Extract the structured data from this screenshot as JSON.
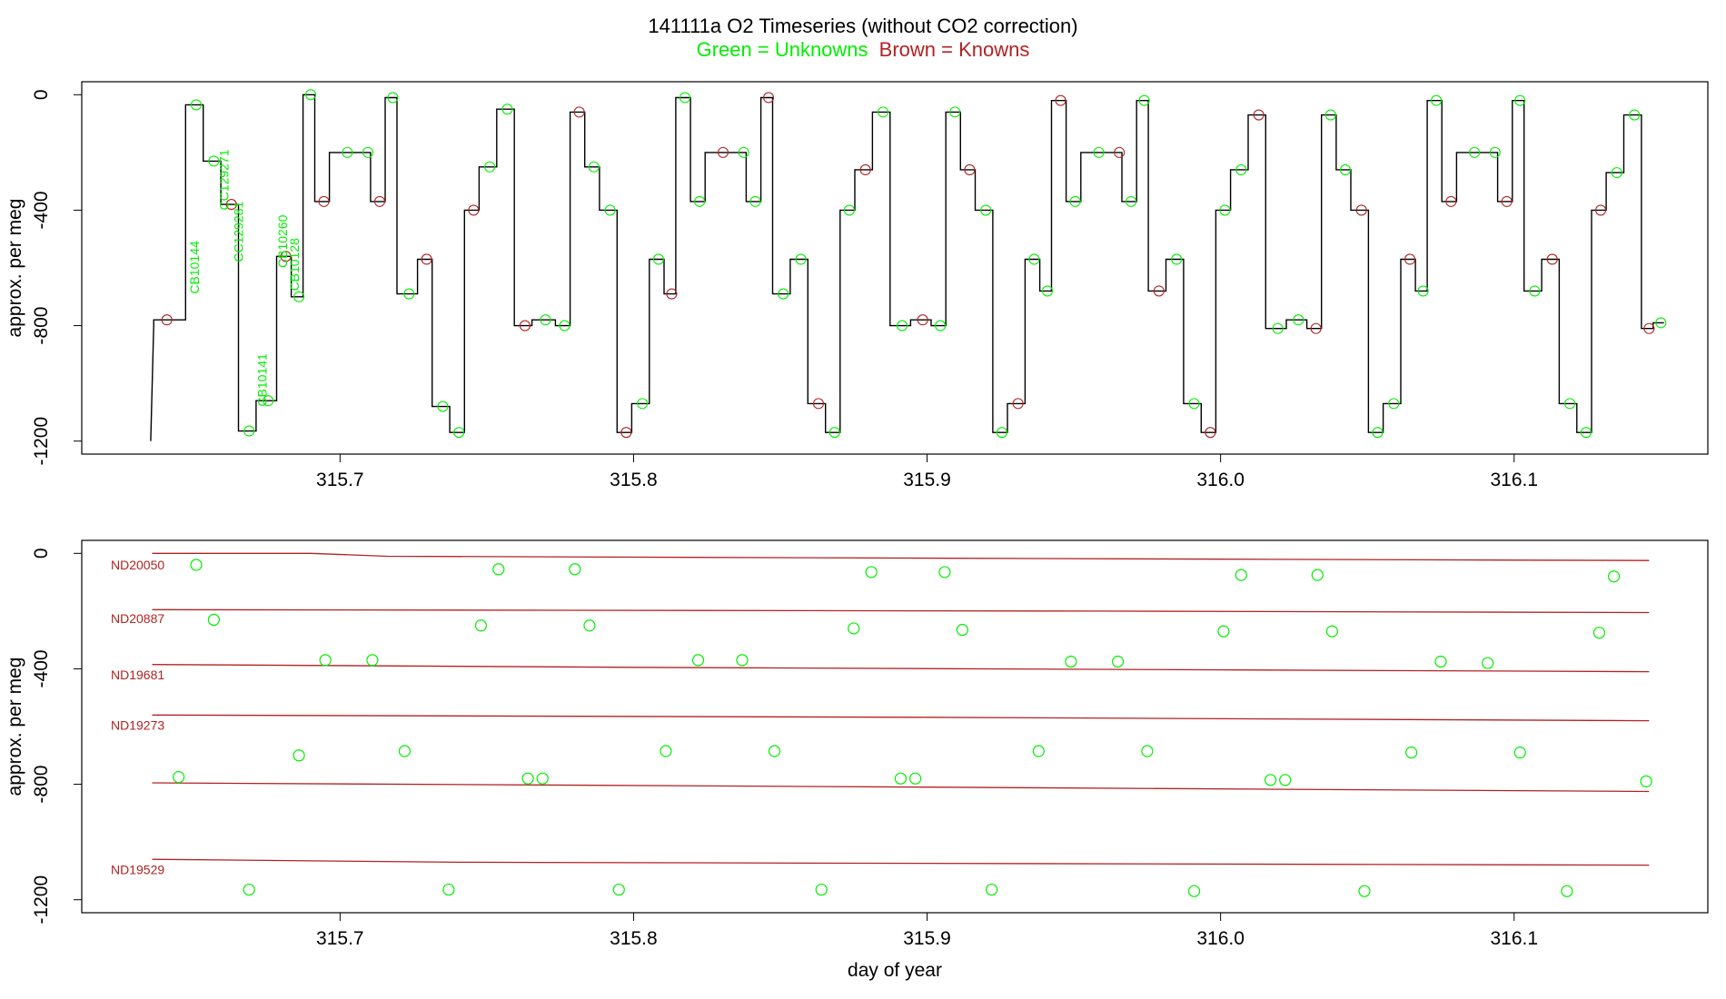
{
  "title": {
    "main": "141111a   O2 Timeseries (without CO2 correction)",
    "legend_unknowns": "Green = Unknowns",
    "legend_knowns": "Brown = Knowns"
  },
  "colors": {
    "unknown": "#00ee00",
    "known": "#b22222",
    "trace": "#000000",
    "frame": "#000000"
  },
  "chart_data": [
    {
      "type": "line",
      "panel": "top",
      "title": "141111a   O2 Timeseries (without CO2 correction)",
      "xlabel": "",
      "ylabel": "approx. per meg",
      "xlim": [
        315.612,
        316.166
      ],
      "ylim": [
        -1245,
        45
      ],
      "xticks": [
        315.7,
        315.8,
        315.9,
        316.0,
        316.1
      ],
      "xtick_labels": [
        "315.7",
        "315.8",
        "315.9",
        "316.0",
        "316.1"
      ],
      "yticks": [
        0,
        -400,
        -800,
        -1200
      ],
      "ytick_labels": [
        "0",
        "-400",
        "-800",
        "-1200"
      ],
      "trace_levels": [
        {
          "x": 315.634,
          "y": -780
        },
        {
          "x": 315.648,
          "y": -35
        },
        {
          "x": 315.654,
          "y": -230
        },
        {
          "x": 315.66,
          "y": -380
        },
        {
          "x": 315.666,
          "y": -1165
        },
        {
          "x": 315.672,
          "y": -1060
        },
        {
          "x": 315.679,
          "y": -560
        },
        {
          "x": 315.684,
          "y": -700
        },
        {
          "x": 315.688,
          "y": 0
        },
        {
          "x": 315.692,
          "y": -370
        },
        {
          "x": 315.697,
          "y": -200
        },
        {
          "x": 315.708,
          "y": -200
        },
        {
          "x": 315.711,
          "y": -370
        },
        {
          "x": 315.716,
          "y": -10
        },
        {
          "x": 315.72,
          "y": -690
        },
        {
          "x": 315.727,
          "y": -570
        },
        {
          "x": 315.732,
          "y": -1080
        },
        {
          "x": 315.738,
          "y": -1170
        },
        {
          "x": 315.743,
          "y": -400
        },
        {
          "x": 315.748,
          "y": -250
        },
        {
          "x": 315.754,
          "y": -50
        },
        {
          "x": 315.76,
          "y": -800
        },
        {
          "x": 315.766,
          "y": -780
        },
        {
          "x": 315.774,
          "y": -800
        },
        {
          "x": 315.779,
          "y": -60
        },
        {
          "x": 315.784,
          "y": -250
        },
        {
          "x": 315.789,
          "y": -400
        },
        {
          "x": 315.795,
          "y": -1170
        },
        {
          "x": 315.8,
          "y": -1070
        },
        {
          "x": 315.806,
          "y": -570
        },
        {
          "x": 315.811,
          "y": -690
        },
        {
          "x": 315.815,
          "y": -10
        },
        {
          "x": 315.82,
          "y": -370
        },
        {
          "x": 315.825,
          "y": -200
        },
        {
          "x": 315.836,
          "y": -200
        },
        {
          "x": 315.839,
          "y": -370
        },
        {
          "x": 315.844,
          "y": -10
        },
        {
          "x": 315.848,
          "y": -690
        },
        {
          "x": 315.854,
          "y": -570
        },
        {
          "x": 315.86,
          "y": -1070
        },
        {
          "x": 315.866,
          "y": -1170
        },
        {
          "x": 315.871,
          "y": -400
        },
        {
          "x": 315.876,
          "y": -260
        },
        {
          "x": 315.882,
          "y": -60
        },
        {
          "x": 315.888,
          "y": -800
        },
        {
          "x": 315.895,
          "y": -780
        },
        {
          "x": 315.902,
          "y": -800
        },
        {
          "x": 315.907,
          "y": -60
        },
        {
          "x": 315.912,
          "y": -260
        },
        {
          "x": 315.917,
          "y": -400
        },
        {
          "x": 315.923,
          "y": -1170
        },
        {
          "x": 315.928,
          "y": -1070
        },
        {
          "x": 315.934,
          "y": -570
        },
        {
          "x": 315.939,
          "y": -680
        },
        {
          "x": 315.943,
          "y": -20
        },
        {
          "x": 315.948,
          "y": -370
        },
        {
          "x": 315.953,
          "y": -200
        },
        {
          "x": 315.964,
          "y": -200
        },
        {
          "x": 315.967,
          "y": -370
        },
        {
          "x": 315.972,
          "y": -20
        },
        {
          "x": 315.976,
          "y": -680
        },
        {
          "x": 315.982,
          "y": -570
        },
        {
          "x": 315.988,
          "y": -1070
        },
        {
          "x": 315.994,
          "y": -1170
        },
        {
          "x": 315.999,
          "y": -400
        },
        {
          "x": 316.004,
          "y": -260
        },
        {
          "x": 316.01,
          "y": -70
        },
        {
          "x": 316.016,
          "y": -810
        },
        {
          "x": 316.023,
          "y": -780
        },
        {
          "x": 316.03,
          "y": -810
        },
        {
          "x": 316.035,
          "y": -70
        },
        {
          "x": 316.04,
          "y": -260
        },
        {
          "x": 316.045,
          "y": -400
        },
        {
          "x": 316.051,
          "y": -1170
        },
        {
          "x": 316.056,
          "y": -1070
        },
        {
          "x": 316.062,
          "y": -570
        },
        {
          "x": 316.067,
          "y": -680
        },
        {
          "x": 316.071,
          "y": -20
        },
        {
          "x": 316.076,
          "y": -370
        },
        {
          "x": 316.081,
          "y": -200
        },
        {
          "x": 316.092,
          "y": -200
        },
        {
          "x": 316.095,
          "y": -370
        },
        {
          "x": 316.1,
          "y": -20
        },
        {
          "x": 316.104,
          "y": -680
        },
        {
          "x": 316.11,
          "y": -570
        },
        {
          "x": 316.116,
          "y": -1070
        },
        {
          "x": 316.122,
          "y": -1170
        },
        {
          "x": 316.127,
          "y": -400
        },
        {
          "x": 316.132,
          "y": -270
        },
        {
          "x": 316.138,
          "y": -70
        },
        {
          "x": 316.144,
          "y": -810
        },
        {
          "x": 316.148,
          "y": -790
        }
      ],
      "annotations": [
        {
          "text": "CB10144",
          "x": 315.652,
          "y": -690
        },
        {
          "text": "CC129271",
          "x": 315.662,
          "y": -400
        },
        {
          "text": "CC129281",
          "x": 315.667,
          "y": -580
        },
        {
          "text": "CB10141",
          "x": 315.675,
          "y": -1080
        },
        {
          "text": "CB10260",
          "x": 315.682,
          "y": -600
        },
        {
          "text": "CB10128",
          "x": 315.686,
          "y": -680
        }
      ]
    },
    {
      "type": "scatter",
      "panel": "bottom",
      "xlabel": "day of year",
      "ylabel": "approx. per meg",
      "xlim": [
        315.612,
        316.166
      ],
      "ylim": [
        -1245,
        45
      ],
      "xticks": [
        315.7,
        315.8,
        315.9,
        316.0,
        316.1
      ],
      "xtick_labels": [
        "315.7",
        "315.8",
        "315.9",
        "316.0",
        "316.1"
      ],
      "yticks": [
        0,
        -400,
        -800,
        -1200
      ],
      "ytick_labels": [
        "0",
        "-400",
        "-800",
        "-1200"
      ],
      "known_lines": [
        {
          "name": "ND20050",
          "x": [
            315.636,
            315.69,
            315.716,
            316.0,
            316.146
          ],
          "y": [
            0,
            0,
            -10,
            -20,
            -25
          ],
          "label_y": -40
        },
        {
          "name": "ND20887",
          "x": [
            315.636,
            315.96,
            316.146
          ],
          "y": [
            -195,
            -200,
            -205
          ],
          "label_y": -225
        },
        {
          "name": "ND19681",
          "x": [
            315.636,
            315.8,
            316.146
          ],
          "y": [
            -385,
            -395,
            -410
          ],
          "label_y": -420
        },
        {
          "name": "ND19273",
          "x": [
            315.636,
            315.9,
            316.146
          ],
          "y": [
            -560,
            -568,
            -580
          ],
          "label_y": -595
        },
        {
          "name": "",
          "x": [
            315.636,
            315.9,
            316.146
          ],
          "y": [
            -795,
            -810,
            -825
          ],
          "label_y": null
        },
        {
          "name": "ND19529",
          "x": [
            315.636,
            315.74,
            316.146
          ],
          "y": [
            -1060,
            -1070,
            -1080
          ],
          "label_y": -1095
        }
      ],
      "unknowns": [
        {
          "x": 315.651,
          "y": -40
        },
        {
          "x": 315.657,
          "y": -230
        },
        {
          "x": 315.645,
          "y": -775
        },
        {
          "x": 315.669,
          "y": -1165
        },
        {
          "x": 315.686,
          "y": -700
        },
        {
          "x": 315.695,
          "y": -370
        },
        {
          "x": 315.711,
          "y": -370
        },
        {
          "x": 315.722,
          "y": -685
        },
        {
          "x": 315.737,
          "y": -1165
        },
        {
          "x": 315.748,
          "y": -250
        },
        {
          "x": 315.754,
          "y": -55
        },
        {
          "x": 315.764,
          "y": -780
        },
        {
          "x": 315.769,
          "y": -780
        },
        {
          "x": 315.78,
          "y": -55
        },
        {
          "x": 315.785,
          "y": -250
        },
        {
          "x": 315.795,
          "y": -1165
        },
        {
          "x": 315.811,
          "y": -685
        },
        {
          "x": 315.822,
          "y": -370
        },
        {
          "x": 315.837,
          "y": -370
        },
        {
          "x": 315.848,
          "y": -685
        },
        {
          "x": 315.864,
          "y": -1165
        },
        {
          "x": 315.875,
          "y": -260
        },
        {
          "x": 315.881,
          "y": -65
        },
        {
          "x": 315.891,
          "y": -780
        },
        {
          "x": 315.896,
          "y": -780
        },
        {
          "x": 315.906,
          "y": -65
        },
        {
          "x": 315.912,
          "y": -265
        },
        {
          "x": 315.922,
          "y": -1165
        },
        {
          "x": 315.938,
          "y": -685
        },
        {
          "x": 315.949,
          "y": -375
        },
        {
          "x": 315.965,
          "y": -375
        },
        {
          "x": 315.975,
          "y": -685
        },
        {
          "x": 315.991,
          "y": -1170
        },
        {
          "x": 316.001,
          "y": -270
        },
        {
          "x": 316.007,
          "y": -75
        },
        {
          "x": 316.017,
          "y": -785
        },
        {
          "x": 316.022,
          "y": -785
        },
        {
          "x": 316.033,
          "y": -75
        },
        {
          "x": 316.038,
          "y": -270
        },
        {
          "x": 316.049,
          "y": -1170
        },
        {
          "x": 316.065,
          "y": -690
        },
        {
          "x": 316.075,
          "y": -375
        },
        {
          "x": 316.091,
          "y": -380
        },
        {
          "x": 316.102,
          "y": -690
        },
        {
          "x": 316.118,
          "y": -1170
        },
        {
          "x": 316.129,
          "y": -275
        },
        {
          "x": 316.134,
          "y": -80
        },
        {
          "x": 316.145,
          "y": -790
        }
      ]
    }
  ]
}
